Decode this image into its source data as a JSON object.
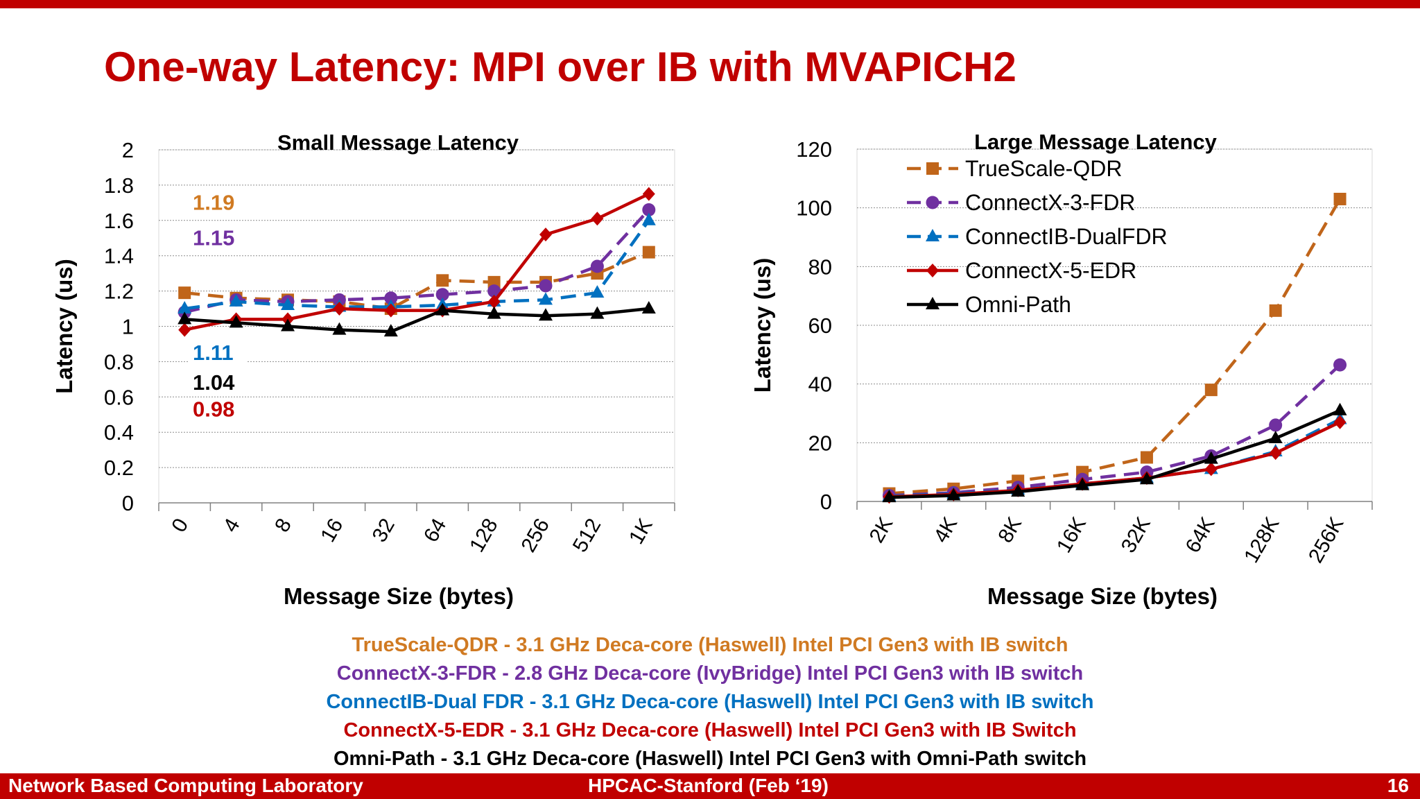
{
  "slide": {
    "title": "One-way Latency: MPI over IB with MVAPICH2",
    "footer_left": "Network Based Computing Laboratory",
    "footer_center": "HPCAC-Stanford (Feb ‘19)",
    "page_number": "16",
    "notes": [
      {
        "text": "TrueScale-QDR - 3.1 GHz Deca-core (Haswell) Intel PCI Gen3 with IB switch",
        "color": "#d07a22"
      },
      {
        "text": "ConnectX-3-FDR - 2.8 GHz Deca-core (IvyBridge) Intel PCI Gen3 with IB switch",
        "color": "#7030a0"
      },
      {
        "text": "ConnectIB-Dual FDR - 3.1 GHz Deca-core (Haswell) Intel PCI Gen3 with IB switch",
        "color": "#0070c0"
      },
      {
        "text": "ConnectX-5-EDR - 3.1 GHz Deca-core (Haswell) Intel PCI Gen3 with IB Switch",
        "color": "#c00000"
      },
      {
        "text": "Omni-Path - 3.1 GHz Deca-core (Haswell) Intel PCI Gen3 with Omni-Path switch",
        "color": "#000000"
      }
    ]
  },
  "chart_data": [
    {
      "type": "line",
      "title": "Small Message Latency",
      "xlabel": "Message Size (bytes)",
      "ylabel": "Latency (us)",
      "categories": [
        "0",
        "4",
        "8",
        "16",
        "32",
        "64",
        "128",
        "256",
        "512",
        "1K"
      ],
      "ylim": [
        0,
        2
      ],
      "yticks": [
        "0",
        "0.2",
        "0.4",
        "0.6",
        "0.8",
        "1",
        "1.2",
        "1.4",
        "1.6",
        "1.8",
        "2"
      ],
      "grid": true,
      "series": [
        {
          "name": "TrueScale-QDR",
          "color": "#c0651a",
          "marker": "square",
          "dash": true,
          "values": [
            1.19,
            1.16,
            1.15,
            1.14,
            1.1,
            1.26,
            1.25,
            1.25,
            1.3,
            1.42
          ]
        },
        {
          "name": "ConnectX-3-FDR",
          "color": "#7030a0",
          "marker": "circle",
          "dash": true,
          "values": [
            1.08,
            1.15,
            1.14,
            1.15,
            1.16,
            1.18,
            1.2,
            1.23,
            1.34,
            1.66
          ]
        },
        {
          "name": "ConnectIB-DualFDR",
          "color": "#0070c0",
          "marker": "triangle",
          "dash": true,
          "values": [
            1.1,
            1.14,
            1.12,
            1.11,
            1.11,
            1.12,
            1.14,
            1.15,
            1.19,
            1.6
          ]
        },
        {
          "name": "ConnectX-5-EDR",
          "color": "#c00000",
          "marker": "diamond",
          "dash": false,
          "values": [
            0.98,
            1.04,
            1.04,
            1.1,
            1.09,
            1.09,
            1.14,
            1.52,
            1.61,
            1.75
          ]
        },
        {
          "name": "Omni-Path",
          "color": "#000000",
          "marker": "triangle",
          "dash": false,
          "values": [
            1.04,
            1.02,
            1.0,
            0.98,
            0.97,
            1.09,
            1.07,
            1.06,
            1.07,
            1.1
          ]
        }
      ],
      "annotations": [
        {
          "text": "1.19",
          "color": "#d07a22",
          "y": 1.66
        },
        {
          "text": "1.15",
          "color": "#7030a0",
          "y": 1.46
        },
        {
          "text": "1.11",
          "color": "#0070c0",
          "y": 0.81
        },
        {
          "text": "1.04",
          "color": "#000000",
          "y": 0.64
        },
        {
          "text": "0.98",
          "color": "#c00000",
          "y": 0.49
        }
      ]
    },
    {
      "type": "line",
      "title": "Large Message Latency",
      "xlabel": "Message Size (bytes)",
      "ylabel": "Latency (us)",
      "categories": [
        "2K",
        "4K",
        "8K",
        "16K",
        "32K",
        "64K",
        "128K",
        "256K"
      ],
      "ylim": [
        0,
        120
      ],
      "yticks": [
        "0",
        "20",
        "40",
        "60",
        "80",
        "100",
        "120"
      ],
      "grid": true,
      "legend_position": "top-left",
      "series": [
        {
          "name": "TrueScale-QDR",
          "color": "#c0651a",
          "marker": "square",
          "dash": true,
          "values": [
            2.7,
            4.3,
            7.0,
            10.0,
            15.0,
            38.0,
            65.0,
            103.0
          ]
        },
        {
          "name": "ConnectX-3-FDR",
          "color": "#7030a0",
          "marker": "circle",
          "dash": true,
          "values": [
            2.0,
            3.0,
            4.8,
            7.5,
            10.0,
            15.5,
            26.0,
            46.5
          ]
        },
        {
          "name": "ConnectIB-DualFDR",
          "color": "#0070c0",
          "marker": "triangle",
          "dash": true,
          "values": [
            1.8,
            2.6,
            4.0,
            6.0,
            8.0,
            11.0,
            17.0,
            28.0
          ]
        },
        {
          "name": "ConnectX-5-EDR",
          "color": "#c00000",
          "marker": "diamond",
          "dash": false,
          "values": [
            1.6,
            2.4,
            3.8,
            6.0,
            8.0,
            11.0,
            16.5,
            27.0
          ]
        },
        {
          "name": "Omni-Path",
          "color": "#000000",
          "marker": "triangle",
          "dash": false,
          "values": [
            1.4,
            2.0,
            3.3,
            5.5,
            7.5,
            14.5,
            21.5,
            31.0
          ]
        }
      ]
    }
  ]
}
